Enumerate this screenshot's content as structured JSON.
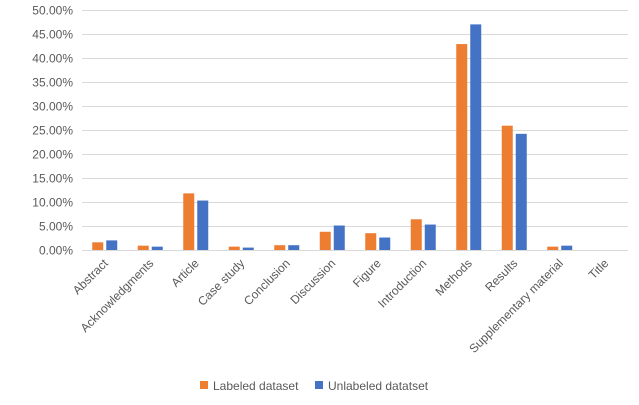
{
  "chart_data": {
    "type": "bar",
    "title": "",
    "xlabel": "",
    "ylabel": "",
    "ylim": [
      0,
      50
    ],
    "yticks": [
      "0.00%",
      "5.00%",
      "10.00%",
      "15.00%",
      "20.00%",
      "25.00%",
      "30.00%",
      "35.00%",
      "40.00%",
      "45.00%",
      "50.00%"
    ],
    "y_tick_values": [
      0,
      5,
      10,
      15,
      20,
      25,
      30,
      35,
      40,
      45,
      50
    ],
    "grid": true,
    "legend_position": "bottom",
    "categories": [
      "Abstract",
      "Acknowledgments",
      "Article",
      "Case study",
      "Conclusion",
      "Discussion",
      "Figure",
      "Introduction",
      "Methods",
      "Results",
      "Supplementary material",
      "Title"
    ],
    "series": [
      {
        "name": "Labeled dataset",
        "color": "#ED7D31",
        "values": [
          1.6,
          0.9,
          11.8,
          0.7,
          1.0,
          3.8,
          3.5,
          6.4,
          42.9,
          25.9,
          0.7,
          0.0
        ]
      },
      {
        "name": "Unlabeled datatset",
        "color": "#4472C4",
        "values": [
          2.0,
          0.7,
          10.3,
          0.5,
          1.0,
          5.1,
          2.6,
          5.3,
          47.0,
          24.2,
          0.9,
          0.0
        ]
      }
    ]
  }
}
